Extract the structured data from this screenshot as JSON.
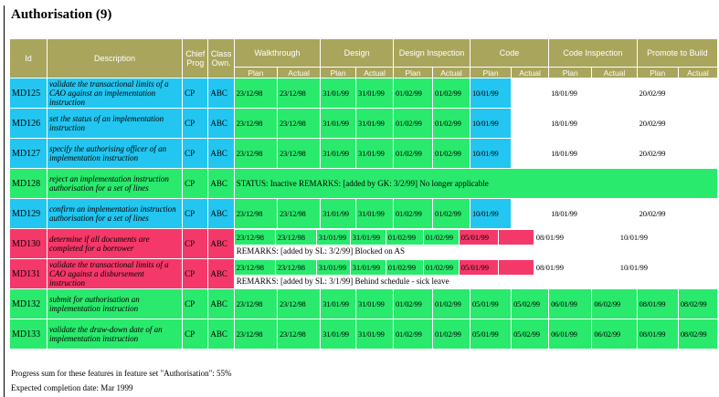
{
  "title": "Authorisation (9)",
  "headers": {
    "id": "Id",
    "description": "Description",
    "chief_prog": "Chief Prog",
    "class_own": "Class Own.",
    "groups": [
      "Walkthrough",
      "Design",
      "Design Inspection",
      "Code",
      "Code Inspection",
      "Promote to Build"
    ],
    "plan": "Plan",
    "actual": "Actual"
  },
  "rows": [
    {
      "id": "MD125",
      "desc": "validate the transactional limits of a CAO against an implementation instruction",
      "cp": "CP",
      "co": "ABC",
      "color": "blue",
      "dates": [
        "23/12/98",
        "23/12/98",
        "31/01/99",
        "31/01/99",
        "01/02/99",
        "01/02/99",
        "10/01/99",
        "",
        "18/01/99",
        "",
        "20/02/99",
        ""
      ]
    },
    {
      "id": "MD126",
      "desc": "set the status of an implementation instruction",
      "cp": "CP",
      "co": "ABC",
      "color": "blue",
      "dates": [
        "23/12/98",
        "23/12/98",
        "31/01/99",
        "31/01/99",
        "01/02/99",
        "01/02/99",
        "10/01/99",
        "",
        "18/01/99",
        "",
        "20/02/99",
        ""
      ]
    },
    {
      "id": "MD127",
      "desc": "specify the authorising officer of an implementation instruction",
      "cp": "CP",
      "co": "ABC",
      "color": "blue",
      "dates": [
        "23/12/98",
        "23/12/98",
        "31/01/99",
        "31/01/99",
        "01/02/99",
        "01/02/99",
        "10/01/99",
        "",
        "18/01/99",
        "",
        "20/02/99",
        ""
      ]
    },
    {
      "id": "MD128",
      "desc": "reject an implementation instruction authorisation for a set of lines",
      "cp": "CP",
      "co": "ABC",
      "color": "green",
      "status": "STATUS: Inactive REMARKS: [added by GK: 3/2/99] No longer applicable"
    },
    {
      "id": "MD129",
      "desc": "confirm an implementation instruction authorisation for a set of lines",
      "cp": "CP",
      "co": "ABC",
      "color": "blue",
      "dates": [
        "23/12/98",
        "23/12/98",
        "31/01/99",
        "31/01/99",
        "01/02/99",
        "01/02/99",
        "10/01/99",
        "",
        "18/01/99",
        "",
        "20/02/99",
        ""
      ]
    },
    {
      "id": "MD130",
      "desc": "determine if all documents are completed for a borrower",
      "cp": "CP",
      "co": "ABC",
      "color": "red",
      "dates": [
        "23/12/98",
        "23/12/98",
        "31/01/99",
        "31/01/99",
        "01/02/99",
        "01/02/99",
        "05/01/99",
        "",
        "08/01/99",
        "",
        "10/01/99",
        ""
      ],
      "remarks": "REMARKS: [added by SL: 3/2/99] Blocked on AS"
    },
    {
      "id": "MD131",
      "desc": "validate the transactional limits of a CAO against a disbursement instruction",
      "cp": "CP",
      "co": "ABC",
      "color": "red",
      "dates": [
        "23/12/98",
        "23/12/98",
        "31/01/99",
        "31/01/99",
        "01/02/99",
        "01/02/99",
        "05/01/99",
        "",
        "08/01/99",
        "",
        "10/01/99",
        ""
      ],
      "remarks": "REMARKS: [added by SL: 3/1/99] Behind schedule - sick leave"
    },
    {
      "id": "MD132",
      "desc": "submit for authorisation an implementation instruction",
      "cp": "CP",
      "co": "ABC",
      "color": "green",
      "dates": [
        "23/12/98",
        "23/12/98",
        "31/01/99",
        "31/01/99",
        "01/02/99",
        "01/02/99",
        "05/01/99",
        "05/02/99",
        "06/01/99",
        "06/02/99",
        "08/01/99",
        "08/02/99"
      ]
    },
    {
      "id": "MD133",
      "desc": "validate the draw-down date of an implementation instruction",
      "cp": "CP",
      "co": "ABC",
      "color": "green",
      "dates": [
        "23/12/98",
        "23/12/98",
        "31/01/99",
        "31/01/99",
        "01/02/99",
        "01/02/99",
        "05/01/99",
        "05/02/99",
        "06/01/99",
        "06/02/99",
        "08/01/99",
        "08/02/99"
      ]
    }
  ],
  "progress_text": "Progress sum for these features in feature set \"Authorisation\": 55%",
  "completion_text": "Expected completion date: Mar 1999",
  "colors": {
    "blue": "#22c6f0",
    "green": "#29ea6c",
    "red": "#f5386a",
    "header": "#a9a55c"
  }
}
